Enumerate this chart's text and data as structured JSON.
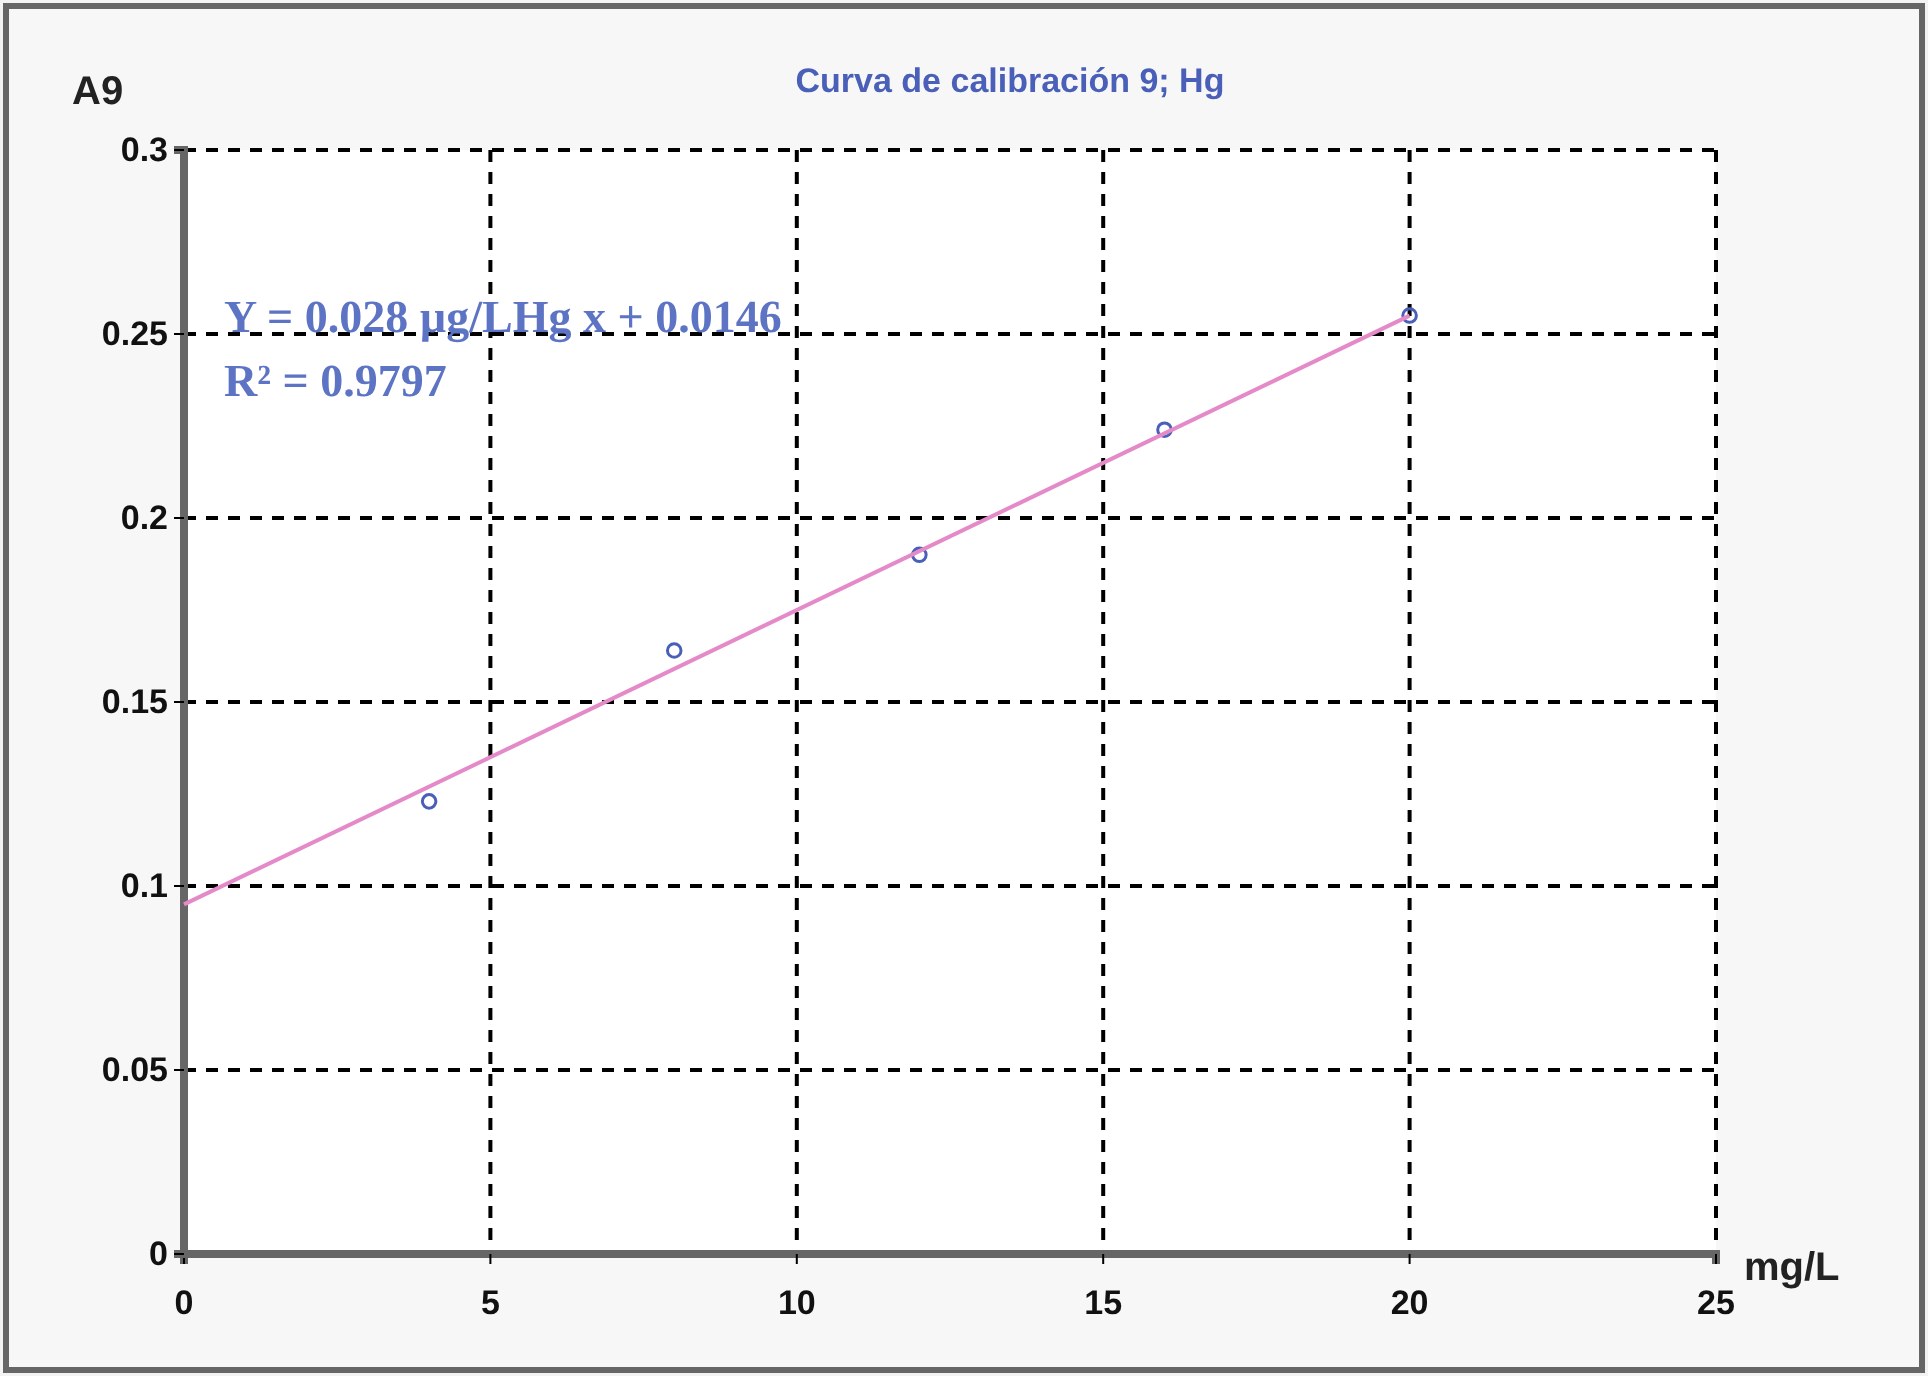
{
  "chart_data": {
    "type": "scatter",
    "title": "Curva de calibración 9; Hg",
    "xlabel": "mg/L",
    "ylabel": "A9",
    "x": [
      4,
      8,
      12,
      16,
      20
    ],
    "series": [
      {
        "color": "#4a5fb8",
        "marker": "circle",
        "values": [
          0.123,
          0.164,
          0.19,
          0.224,
          0.255
        ]
      },
      {
        "type": "line",
        "color": "#e58ac8",
        "marker": "none",
        "x": [
          0,
          20
        ],
        "values": [
          0.095,
          0.255
        ]
      }
    ],
    "xlim": [
      0,
      25
    ],
    "xticks": [
      0,
      5,
      10,
      15,
      20,
      25
    ],
    "ylim": [
      0,
      0.3
    ],
    "yticks": [
      0,
      0.05,
      0.1,
      0.15,
      0.2,
      0.25,
      0.3
    ],
    "grid": true,
    "annotations": [
      "Y = 0.028 µg/LHg x + 0.0146",
      "R² = 0.9797"
    ]
  }
}
